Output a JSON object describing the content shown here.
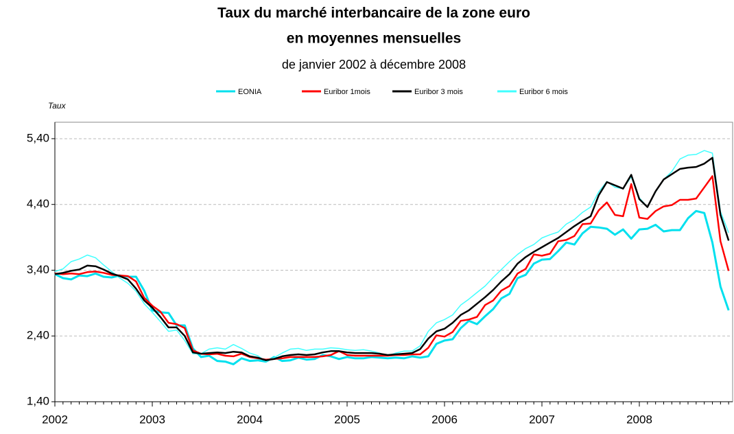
{
  "chart_data": {
    "type": "line",
    "title_lines": [
      "Taux du marché interbancaire de la zone euro",
      "en moyennes mensuelles"
    ],
    "subtitle": "de janvier 2002 à décembre 2008",
    "y_label": "Taux",
    "categories": [
      "2002",
      null,
      null,
      null,
      null,
      null,
      null,
      null,
      null,
      null,
      null,
      null,
      "2003",
      null,
      null,
      null,
      null,
      null,
      null,
      null,
      null,
      null,
      null,
      null,
      "2004",
      null,
      null,
      null,
      null,
      null,
      null,
      null,
      null,
      null,
      null,
      null,
      "2005",
      null,
      null,
      null,
      null,
      null,
      null,
      null,
      null,
      null,
      null,
      null,
      "2006",
      null,
      null,
      null,
      null,
      null,
      null,
      null,
      null,
      null,
      null,
      null,
      "2007",
      null,
      null,
      null,
      null,
      null,
      null,
      null,
      null,
      null,
      null,
      null,
      "2008",
      null,
      null,
      null,
      null,
      null,
      null,
      null,
      null,
      null,
      null,
      null
    ],
    "ylim": [
      1.4,
      5.65
    ],
    "yticks": [
      {
        "value": 1.4,
        "label": "1,40"
      },
      {
        "value": 2.4,
        "label": "2,40"
      },
      {
        "value": 3.4,
        "label": "3,40"
      },
      {
        "value": 4.4,
        "label": "4,40"
      },
      {
        "value": 5.4,
        "label": "5,40"
      }
    ],
    "grid": true,
    "legend": "top",
    "series": [
      {
        "name": "EONIA",
        "color": "#00e0ee",
        "width": 3,
        "values": [
          3.34,
          3.28,
          3.26,
          3.32,
          3.31,
          3.35,
          3.3,
          3.29,
          3.32,
          3.3,
          3.3,
          3.09,
          2.79,
          2.76,
          2.75,
          2.56,
          2.56,
          2.21,
          2.08,
          2.1,
          2.02,
          2.01,
          1.97,
          2.06,
          2.02,
          2.03,
          2.01,
          2.08,
          2.02,
          2.03,
          2.07,
          2.04,
          2.05,
          2.11,
          2.09,
          2.05,
          2.08,
          2.06,
          2.06,
          2.08,
          2.07,
          2.06,
          2.07,
          2.06,
          2.09,
          2.07,
          2.09,
          2.28,
          2.33,
          2.35,
          2.52,
          2.63,
          2.58,
          2.7,
          2.81,
          2.97,
          3.04,
          3.28,
          3.33,
          3.5,
          3.56,
          3.57,
          3.69,
          3.82,
          3.79,
          3.96,
          4.06,
          4.05,
          4.03,
          3.94,
          4.02,
          3.88,
          4.02,
          4.03,
          4.09,
          3.99,
          4.01,
          4.01,
          4.19,
          4.3,
          4.27,
          3.82,
          3.15,
          2.79
        ]
      },
      {
        "name": "Euribor 1mois",
        "color": "#ff0000",
        "width": 2.5,
        "values": [
          3.35,
          3.34,
          3.35,
          3.34,
          3.37,
          3.38,
          3.36,
          3.33,
          3.32,
          3.31,
          3.23,
          2.98,
          2.86,
          2.77,
          2.6,
          2.58,
          2.52,
          2.18,
          2.13,
          2.12,
          2.13,
          2.1,
          2.09,
          2.13,
          2.08,
          2.06,
          2.04,
          2.05,
          2.06,
          2.08,
          2.08,
          2.08,
          2.08,
          2.09,
          2.11,
          2.17,
          2.11,
          2.1,
          2.1,
          2.1,
          2.1,
          2.1,
          2.11,
          2.11,
          2.12,
          2.12,
          2.22,
          2.41,
          2.39,
          2.46,
          2.63,
          2.65,
          2.69,
          2.87,
          2.94,
          3.09,
          3.16,
          3.35,
          3.42,
          3.64,
          3.62,
          3.65,
          3.84,
          3.86,
          3.92,
          4.1,
          4.11,
          4.31,
          4.43,
          4.24,
          4.22,
          4.71,
          4.2,
          4.18,
          4.3,
          4.37,
          4.39,
          4.47,
          4.47,
          4.49,
          4.66,
          4.83,
          3.84,
          3.39
        ]
      },
      {
        "name": "Euribor 3 mois",
        "color": "#000000",
        "width": 2.5,
        "values": [
          3.34,
          3.36,
          3.39,
          3.41,
          3.47,
          3.46,
          3.41,
          3.35,
          3.31,
          3.26,
          3.12,
          2.94,
          2.83,
          2.69,
          2.53,
          2.53,
          2.4,
          2.15,
          2.13,
          2.14,
          2.15,
          2.14,
          2.16,
          2.15,
          2.09,
          2.07,
          2.03,
          2.05,
          2.09,
          2.11,
          2.12,
          2.11,
          2.12,
          2.15,
          2.17,
          2.17,
          2.15,
          2.14,
          2.14,
          2.14,
          2.13,
          2.11,
          2.12,
          2.13,
          2.14,
          2.2,
          2.36,
          2.47,
          2.51,
          2.6,
          2.72,
          2.79,
          2.89,
          2.99,
          3.1,
          3.23,
          3.34,
          3.5,
          3.6,
          3.68,
          3.75,
          3.82,
          3.89,
          3.98,
          4.07,
          4.15,
          4.22,
          4.54,
          4.74,
          4.69,
          4.64,
          4.85,
          4.48,
          4.36,
          4.6,
          4.78,
          4.86,
          4.94,
          4.96,
          4.97,
          5.02,
          5.11,
          4.24,
          3.85
        ]
      },
      {
        "name": "Euribor 6 mois",
        "color": "#40ffff",
        "width": 1.5,
        "values": [
          3.38,
          3.42,
          3.53,
          3.57,
          3.63,
          3.59,
          3.48,
          3.38,
          3.28,
          3.2,
          3.08,
          2.89,
          2.76,
          2.62,
          2.47,
          2.49,
          2.33,
          2.13,
          2.13,
          2.2,
          2.22,
          2.2,
          2.27,
          2.21,
          2.14,
          2.1,
          2.01,
          2.07,
          2.14,
          2.2,
          2.21,
          2.18,
          2.2,
          2.2,
          2.22,
          2.21,
          2.19,
          2.18,
          2.19,
          2.17,
          2.14,
          2.1,
          2.14,
          2.17,
          2.17,
          2.25,
          2.47,
          2.6,
          2.65,
          2.72,
          2.87,
          2.96,
          3.06,
          3.16,
          3.29,
          3.41,
          3.53,
          3.64,
          3.73,
          3.79,
          3.89,
          3.94,
          3.98,
          4.1,
          4.17,
          4.28,
          4.36,
          4.59,
          4.75,
          4.66,
          4.64,
          4.82,
          4.5,
          4.36,
          4.59,
          4.78,
          4.9,
          5.09,
          5.15,
          5.16,
          5.22,
          5.18,
          4.29,
          3.97
        ]
      }
    ]
  }
}
